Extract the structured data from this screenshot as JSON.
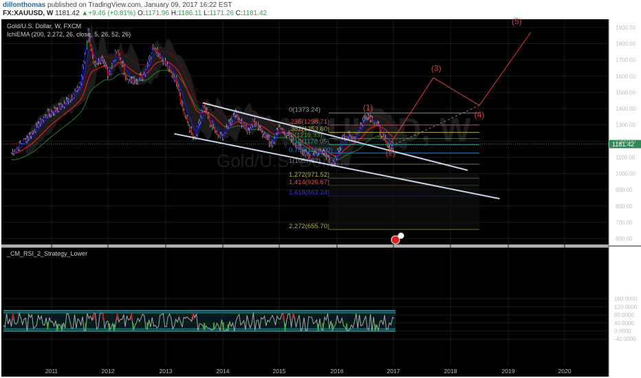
{
  "header": {
    "author": "dillonthomas",
    "published_text": "published on TradingView.com, January 09, 2017 16:22 EST",
    "symbol": "FX:XAUUSD, W",
    "last": "1181.42",
    "change": "+9.46 (+0.81%)",
    "open_label": "O:",
    "open": "1171.96",
    "high_label": "H:",
    "high": "1186.11",
    "low_label": "L:",
    "low": "1171.26",
    "close_label": "C:",
    "close": "1181.42"
  },
  "main_pane": {
    "title": "Gold/U.S. Dollar, W, FXCM",
    "indicator": "IchiEMA (200, 2.272, 26, close, 5, 26, 52, 26)",
    "watermark_symbol": "XAUUSD, W",
    "watermark_name": "Gold/U.S. Dollar",
    "price_label": "1181.42"
  },
  "lower_pane": {
    "title": "_CM_RSI_2_Strategy_Lower"
  },
  "colors": {
    "up_candle": "#1515c8",
    "down_candle": "#c81515",
    "neutral_candle": "#2e8b2e",
    "ema_fast": "#1a1ad0",
    "ema_slow": "#d01a1a",
    "ema_band": "#2e7d2e",
    "channel": "#c8d4ec",
    "wave": "#e23b3b",
    "rsi_line": "#a9a9a9",
    "rsi_band": "#2bb3bf",
    "price_line": "#2e8b57"
  },
  "chart_data": [
    {
      "type": "candlestick",
      "title": "Gold/U.S. Dollar, W, FXCM",
      "ylim": [
        580,
        1990
      ],
      "y_ticks": [
        "1900.00",
        "1800.00",
        "1700.00",
        "1600.00",
        "1500.00",
        "1400.00",
        "1300.00",
        "1200.00",
        "1100.00",
        "1000.00",
        "900.00",
        "800.00",
        "700.00",
        "600.00"
      ],
      "x_ticks": [
        "2011",
        "2012",
        "2013",
        "2014",
        "2015",
        "2016",
        "2017",
        "2018",
        "2019",
        "2020"
      ],
      "price_path": [
        {
          "t": 2010.3,
          "v": 1125
        },
        {
          "t": 2010.6,
          "v": 1230
        },
        {
          "t": 2010.9,
          "v": 1360
        },
        {
          "t": 2011.2,
          "v": 1420
        },
        {
          "t": 2011.5,
          "v": 1530
        },
        {
          "t": 2011.65,
          "v": 1880
        },
        {
          "t": 2011.75,
          "v": 1650
        },
        {
          "t": 2011.9,
          "v": 1720
        },
        {
          "t": 2012.0,
          "v": 1600
        },
        {
          "t": 2012.15,
          "v": 1760
        },
        {
          "t": 2012.35,
          "v": 1560
        },
        {
          "t": 2012.6,
          "v": 1600
        },
        {
          "t": 2012.78,
          "v": 1790
        },
        {
          "t": 2013.0,
          "v": 1670
        },
        {
          "t": 2013.2,
          "v": 1560
        },
        {
          "t": 2013.3,
          "v": 1390
        },
        {
          "t": 2013.5,
          "v": 1200
        },
        {
          "t": 2013.65,
          "v": 1410
        },
        {
          "t": 2013.9,
          "v": 1230
        },
        {
          "t": 2014.0,
          "v": 1230
        },
        {
          "t": 2014.2,
          "v": 1380
        },
        {
          "t": 2014.45,
          "v": 1250
        },
        {
          "t": 2014.55,
          "v": 1330
        },
        {
          "t": 2014.85,
          "v": 1180
        },
        {
          "t": 2015.0,
          "v": 1290
        },
        {
          "t": 2015.3,
          "v": 1170
        },
        {
          "t": 2015.55,
          "v": 1090
        },
        {
          "t": 2015.7,
          "v": 1150
        },
        {
          "t": 2015.95,
          "v": 1050
        },
        {
          "t": 2016.1,
          "v": 1240
        },
        {
          "t": 2016.3,
          "v": 1220
        },
        {
          "t": 2016.52,
          "v": 1370
        },
        {
          "t": 2016.7,
          "v": 1310
        },
        {
          "t": 2016.9,
          "v": 1160
        },
        {
          "t": 2017.0,
          "v": 1181
        }
      ],
      "channel": [
        {
          "from": {
            "t": 2013.65,
            "v": 1435
          },
          "to": {
            "t": 2018.3,
            "v": 1020
          }
        },
        {
          "from": {
            "t": 2013.15,
            "v": 1245
          },
          "to": {
            "t": 2018.85,
            "v": 845
          }
        }
      ],
      "fibonacci": [
        {
          "label": "0(1373.24)",
          "value": 1373.24,
          "color": "#9e9e9e"
        },
        {
          "label": ".236(1298.71)",
          "value": 1298.71,
          "color": "#e05050"
        },
        {
          "label": ".382(1253.60)",
          "value": 1253.6,
          "color": "#b5b53c"
        },
        {
          "label": ".5(1215.33)",
          "value": 1215.33,
          "color": "#3ca33c"
        },
        {
          "label": ".618(1178.05)",
          "value": 1178.05,
          "color": "#2a9d8f"
        },
        {
          "label": "0.786(1126.00)",
          "value": 1126.0,
          "color": "#2980b9"
        },
        {
          "label": "1(1057.62)",
          "value": 1057.62,
          "color": "#7f7f7f"
        },
        {
          "label": "1.272(971.52)",
          "value": 971.52,
          "color": "#b5b53c"
        },
        {
          "label": "1.414(926.67)",
          "value": 926.67,
          "color": "#e05050"
        },
        {
          "label": "1.618(862.24)",
          "value": 862.24,
          "color": "#3c3cc8"
        },
        {
          "label": "2.272(655.70)",
          "value": 655.7,
          "color": "#b5b53c"
        }
      ],
      "wave_path": [
        {
          "t": 2016.9,
          "v": 1160
        },
        {
          "t": 2017.7,
          "v": 1590
        },
        {
          "t": 2018.5,
          "v": 1420
        },
        {
          "t": 2019.4,
          "v": 1870
        }
      ],
      "projection": [
        {
          "t": 2016.9,
          "v": 1160
        },
        {
          "t": 2018.5,
          "v": 1420
        }
      ],
      "wave_labels": [
        {
          "text": "(1)",
          "t": 2016.55,
          "v": 1390
        },
        {
          "text": "(2)",
          "t": 2016.95,
          "v": 1110
        },
        {
          "text": "(3)",
          "t": 2017.75,
          "v": 1630
        },
        {
          "text": "(4)",
          "t": 2018.5,
          "v": 1345
        },
        {
          "text": "(5)",
          "t": 2019.15,
          "v": 1920
        }
      ]
    },
    {
      "type": "line",
      "title": "_CM_RSI_2_Strategy_Lower",
      "ylim": [
        -60,
        180
      ],
      "y_ticks": [
        "160.0000",
        "120.0000",
        "80.0000",
        "40.0000",
        "0.0000",
        "-40.0000"
      ],
      "bands": [
        0,
        10,
        90,
        100
      ]
    }
  ]
}
